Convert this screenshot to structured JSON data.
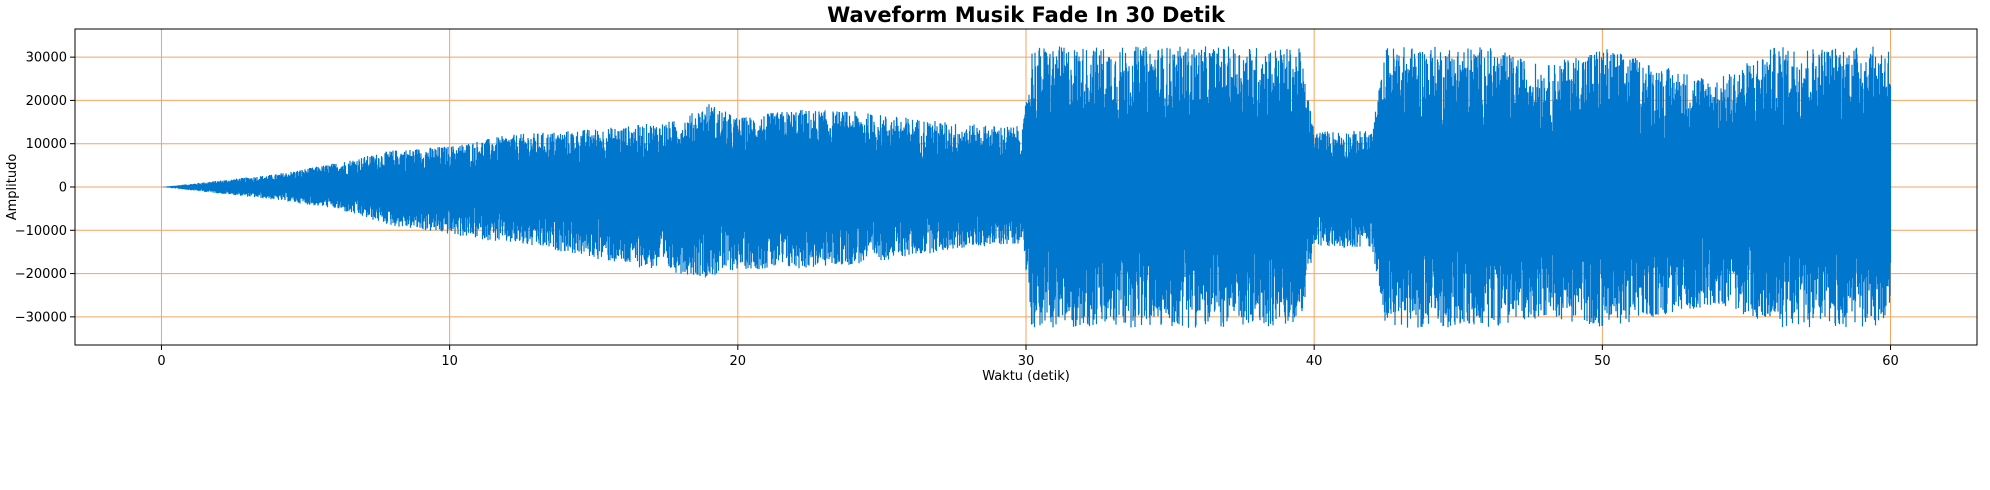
{
  "chart_data": {
    "type": "line",
    "title": "Waveform Musik Fade In 30 Detik",
    "xlabel": "Waktu (detik)",
    "ylabel": "Amplitudo",
    "xlim": [
      -3,
      63
    ],
    "ylim": [
      -36500,
      36500
    ],
    "xticks": [
      0,
      10,
      20,
      30,
      40,
      50,
      60
    ],
    "xtick_labels": [
      "0",
      "10",
      "20",
      "30",
      "40",
      "50",
      "60"
    ],
    "yticks": [
      -30000,
      -20000,
      -10000,
      0,
      10000,
      20000,
      30000
    ],
    "ytick_labels": [
      "−30000",
      "−20000",
      "−10000",
      "0",
      "10000",
      "20000",
      "30000"
    ],
    "grid": true,
    "series": [
      {
        "color": "#0077cc",
        "x_range": [
          0,
          60
        ],
        "envelope_time": [
          0,
          2,
          4,
          6,
          8,
          10,
          12,
          14,
          16,
          18,
          19,
          20,
          22,
          24,
          26,
          28,
          29.9,
          30.2,
          32,
          34,
          36,
          38,
          39.5,
          40,
          42,
          42.5,
          44,
          46,
          48,
          50,
          52,
          54,
          56,
          58,
          60
        ],
        "envelope_upper": [
          0,
          1500,
          3000,
          5500,
          8500,
          9500,
          12000,
          13000,
          14000,
          15500,
          19500,
          16000,
          18000,
          17500,
          16000,
          14500,
          14000,
          32500,
          32500,
          32500,
          32500,
          32500,
          32000,
          13000,
          13000,
          32500,
          32500,
          32500,
          28000,
          32500,
          28000,
          25000,
          32500,
          32500,
          32500
        ],
        "envelope_lower": [
          0,
          -1500,
          -3000,
          -5000,
          -9000,
          -11000,
          -13000,
          -15000,
          -18000,
          -20000,
          -21000,
          -19000,
          -19000,
          -18000,
          -16000,
          -14000,
          -13000,
          -32500,
          -32500,
          -32500,
          -32500,
          -32500,
          -32000,
          -14000,
          -14000,
          -32500,
          -32500,
          -32500,
          -30000,
          -32500,
          -30000,
          -27000,
          -32500,
          -32500,
          -32500
        ]
      }
    ]
  }
}
